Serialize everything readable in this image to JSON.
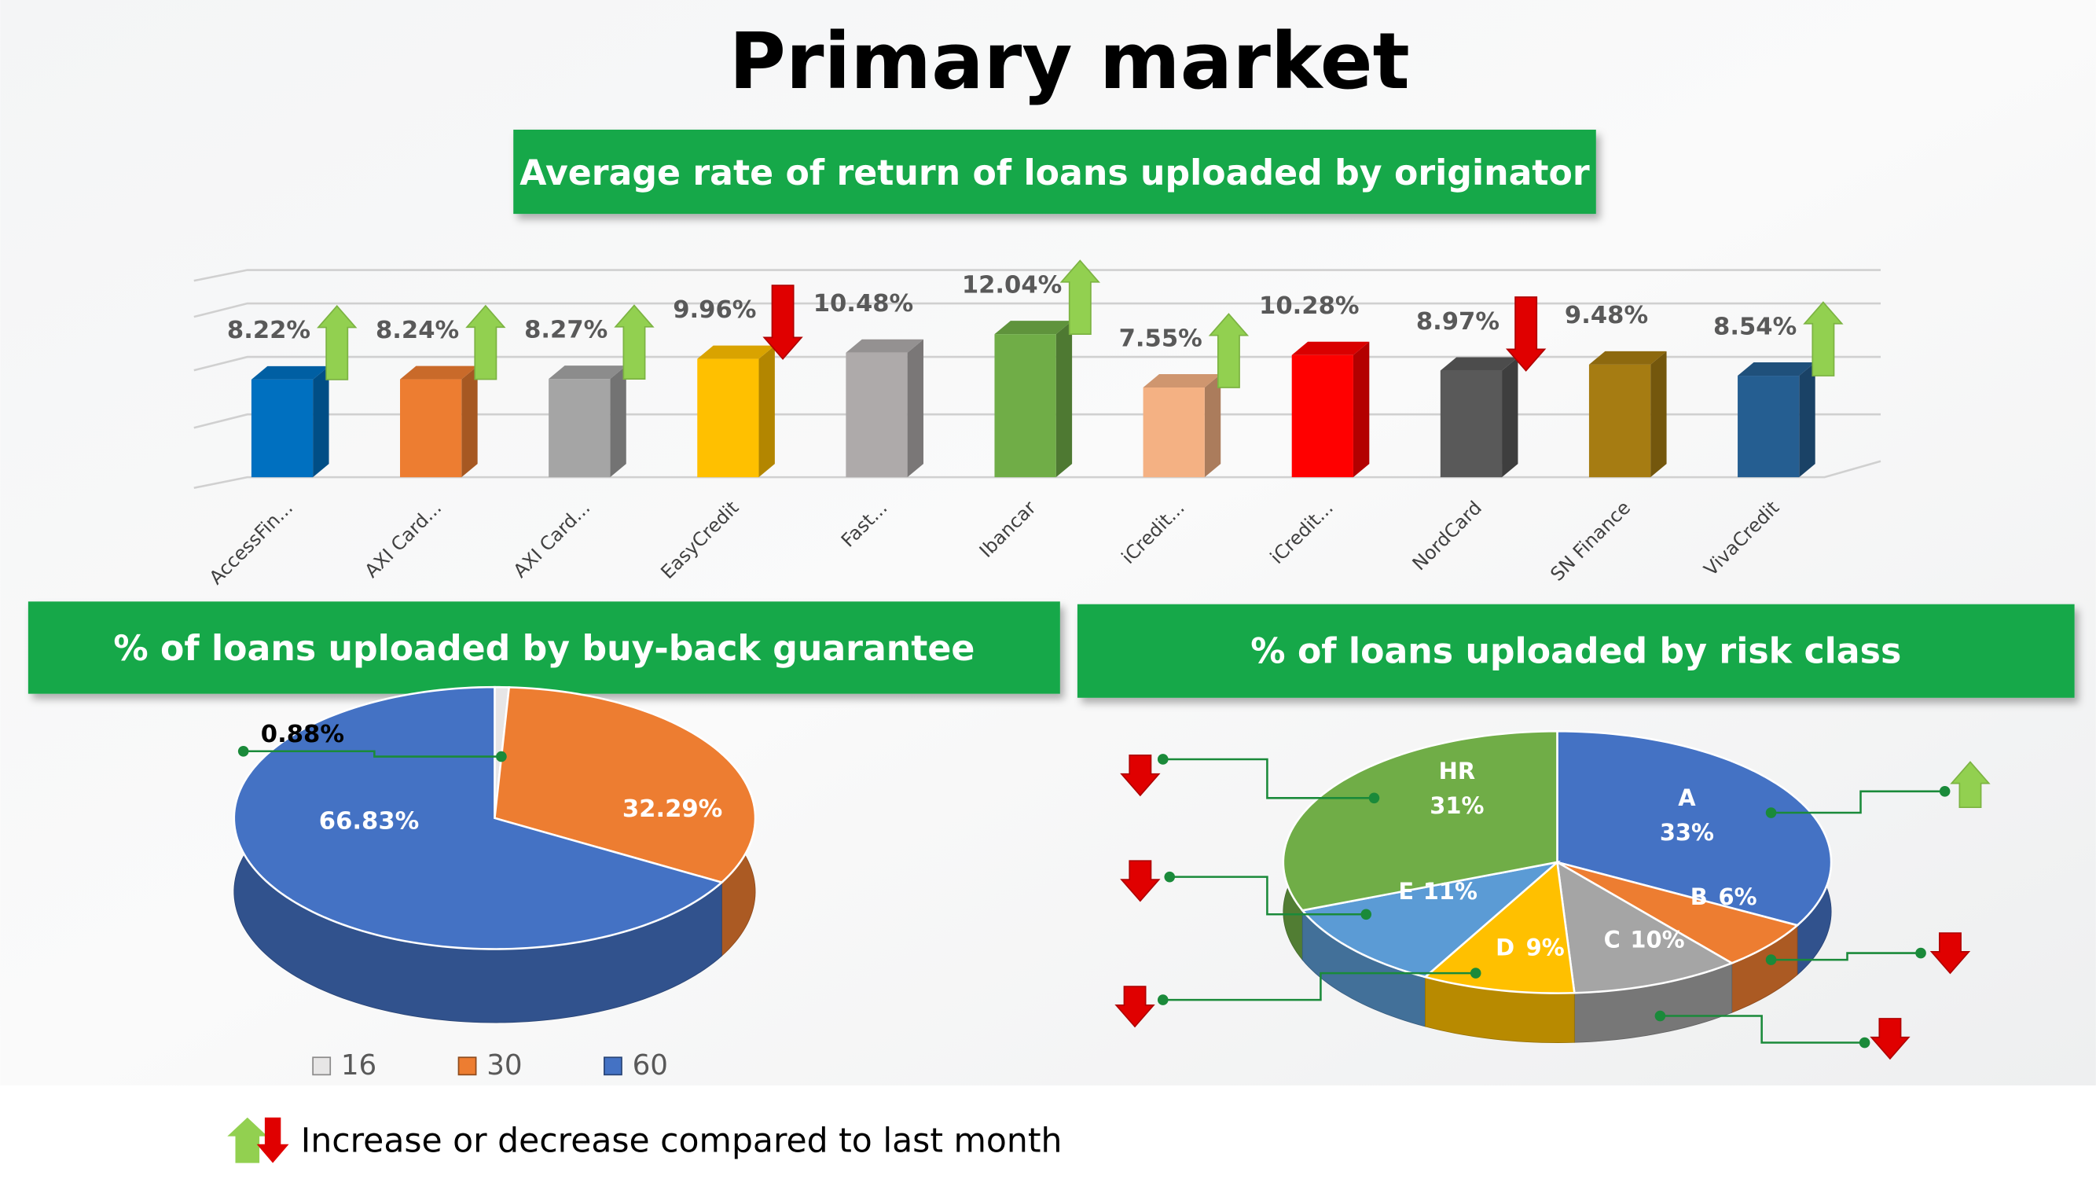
{
  "title": "Primary market",
  "note": "Increase or decrease compared to last month",
  "chart_data": [
    {
      "type": "bar",
      "title": "Average rate of return of loans uploaded by originator",
      "categories": [
        "AccessFin...",
        "AXI Card...",
        "AXI Card...",
        "EasyCredit",
        "Fast...",
        "Ibancar",
        "iCredit...",
        "iCredit...",
        "NordCard",
        "SN Finance",
        "VivaCredit"
      ],
      "values": [
        8.22,
        8.24,
        8.27,
        9.96,
        10.48,
        12.04,
        7.55,
        10.28,
        8.97,
        9.48,
        8.54
      ],
      "value_labels": [
        "8.22%",
        "8.24%",
        "8.27%",
        "9.96%",
        "10.48%",
        "12.04%",
        "7.55%",
        "10.28%",
        "8.97%",
        "9.48%",
        "8.54%"
      ],
      "colors": [
        "#0070c0",
        "#ed7d31",
        "#a5a5a5",
        "#ffc000",
        "#aeaaaa",
        "#70ad47",
        "#f4b183",
        "#ff0000",
        "#595959",
        "#a67c12",
        "#255e91"
      ],
      "trends": [
        "up",
        "up",
        "up",
        "down",
        null,
        "up",
        "up",
        null,
        "down",
        null,
        "up"
      ],
      "ylim": [
        0,
        18
      ]
    },
    {
      "type": "pie",
      "title": "% of loans uploaded by buy-back guarantee",
      "categories": [
        "16",
        "30",
        "60"
      ],
      "values": [
        0.88,
        32.29,
        66.83
      ],
      "value_labels": [
        "0.88%",
        "32.29%",
        "66.83%"
      ],
      "colors": [
        "#e7e6e6",
        "#ed7d31",
        "#4472c4"
      ],
      "legend": true
    },
    {
      "type": "pie",
      "title": "% of loans uploaded by risk class",
      "categories": [
        "A",
        "B",
        "C",
        "D",
        "E",
        "HR"
      ],
      "values": [
        33,
        6,
        10,
        9,
        11,
        31
      ],
      "value_labels": [
        "33%",
        "6%",
        "10%",
        "9%",
        "11%",
        "31%"
      ],
      "colors": [
        "#4472c4",
        "#ed7d31",
        "#a5a5a5",
        "#ffc000",
        "#5b9bd5",
        "#70ad47"
      ],
      "trends": [
        "up",
        "down",
        "down",
        "down",
        "down",
        "down"
      ]
    }
  ]
}
